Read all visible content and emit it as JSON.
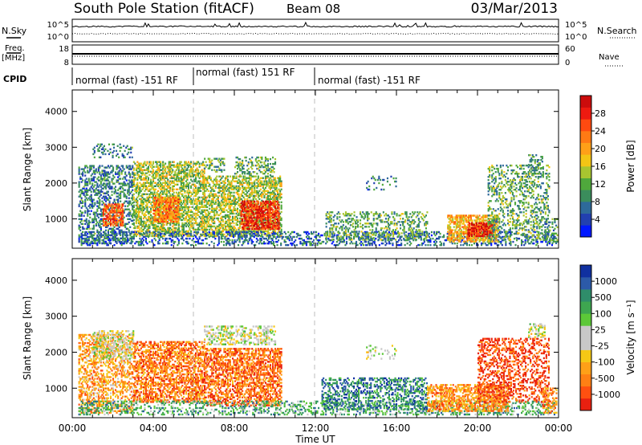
{
  "header": {
    "station": "South Pole Station (fitACF)",
    "beam": "Beam 08",
    "date": "03/Mar/2013"
  },
  "sky_panel": {
    "label": "N.Sky",
    "right_label": "N.Search",
    "left_ticks": [
      "10^5",
      "10^0"
    ],
    "right_ticks": [
      "10^5",
      "10^0"
    ]
  },
  "freq_panel": {
    "label_line1": "Freq.",
    "label_line2": "[MHz]",
    "right_label": "Nave",
    "left_ticks": [
      "18",
      "8"
    ],
    "right_ticks": [
      "60",
      "0"
    ]
  },
  "cpid": {
    "label": "CPID",
    "segments": [
      {
        "start": 0,
        "end": 6,
        "text": "normal (fast) -151 RF"
      },
      {
        "start": 6,
        "end": 12,
        "text": "normal (fast) 151 RF"
      },
      {
        "start": 12,
        "end": 24,
        "text": "normal (fast) -151 RF"
      }
    ]
  },
  "x_axis": {
    "label": "Time UT",
    "ticks": [
      "00:00",
      "04:00",
      "08:00",
      "12:00",
      "16:00",
      "20:00",
      "00:00"
    ]
  },
  "power_scale": {
    "label": "Power [dB]",
    "ticks": [
      "28",
      "24",
      "20",
      "16",
      "12",
      "8",
      "4"
    ],
    "colors": [
      "#0018ff",
      "#2240b0",
      "#2e6a9a",
      "#3b8d5c",
      "#4fa83c",
      "#a8c530",
      "#f3c515",
      "#ffa018",
      "#ff7a14",
      "#ff4a10",
      "#ee1a10",
      "#cc0c0c"
    ]
  },
  "velocity_scale": {
    "label": "Velocity [m s⁻¹]",
    "ticks": [
      "1000",
      "500",
      "100",
      "25",
      "-25",
      "-100",
      "-500",
      "-1000"
    ],
    "colors": [
      "#1030a0",
      "#2c5aa8",
      "#2f8d6a",
      "#3ea650",
      "#5cc838",
      "#c8c8c8",
      "#c8c8c8",
      "#f5c815",
      "#ffa018",
      "#ff8014",
      "#ff5010",
      "#e82010"
    ]
  },
  "chart_data": [
    {
      "type": "heatmap",
      "panel": "power",
      "ylabel": "Slant Range [km]",
      "xlabel": "",
      "x_range_hours": [
        0,
        24
      ],
      "ylim": [
        180,
        4600
      ],
      "yticks": [
        1000,
        2000,
        3000,
        4000
      ],
      "colorbar": {
        "label": "Power [dB]",
        "range": [
          2,
          32
        ],
        "ticks": [
          4,
          8,
          12,
          16,
          20,
          24,
          28
        ]
      },
      "echo_regions": [
        {
          "t0": 0.3,
          "t1": 3.0,
          "r0": 300,
          "r1": 2500,
          "density": 0.4,
          "level": 0.25
        },
        {
          "t0": 1.0,
          "t1": 3.0,
          "r0": 2700,
          "r1": 3100,
          "density": 0.2,
          "level": 0.25
        },
        {
          "t0": 1.5,
          "t1": 2.5,
          "r0": 800,
          "r1": 1400,
          "density": 0.6,
          "level": 0.75
        },
        {
          "t0": 3.0,
          "t1": 6.5,
          "r0": 500,
          "r1": 2600,
          "density": 0.55,
          "level": 0.45
        },
        {
          "t0": 4.0,
          "t1": 5.2,
          "r0": 900,
          "r1": 1600,
          "density": 0.7,
          "level": 0.7
        },
        {
          "t0": 6.5,
          "t1": 10.3,
          "r0": 500,
          "r1": 2200,
          "density": 0.55,
          "level": 0.45
        },
        {
          "t0": 8.3,
          "t1": 10.2,
          "r0": 700,
          "r1": 1500,
          "density": 0.7,
          "level": 0.85
        },
        {
          "t0": 6.5,
          "t1": 7.5,
          "r0": 2300,
          "r1": 2700,
          "density": 0.3,
          "level": 0.35
        },
        {
          "t0": 8.0,
          "t1": 10.0,
          "r0": 2200,
          "r1": 2700,
          "density": 0.3,
          "level": 0.35
        },
        {
          "t0": 0.3,
          "t1": 23.8,
          "r0": 250,
          "r1": 650,
          "density": 0.3,
          "level": 0.2
        },
        {
          "t0": 12.5,
          "t1": 17.5,
          "r0": 400,
          "r1": 1200,
          "density": 0.3,
          "level": 0.35
        },
        {
          "t0": 18.5,
          "t1": 21.0,
          "r0": 350,
          "r1": 1100,
          "density": 0.6,
          "level": 0.6
        },
        {
          "t0": 19.5,
          "t1": 20.7,
          "r0": 500,
          "r1": 900,
          "density": 0.7,
          "level": 0.9
        },
        {
          "t0": 20.5,
          "t1": 23.5,
          "r0": 400,
          "r1": 2500,
          "density": 0.3,
          "level": 0.35
        },
        {
          "t0": 22.5,
          "t1": 23.2,
          "r0": 2400,
          "r1": 2800,
          "density": 0.35,
          "level": 0.3
        },
        {
          "t0": 14.5,
          "t1": 16.0,
          "r0": 1800,
          "r1": 2200,
          "density": 0.15,
          "level": 0.25
        },
        {
          "t0": 23.3,
          "t1": 23.9,
          "r0": 300,
          "r1": 1000,
          "density": 0.4,
          "level": 0.3
        }
      ]
    },
    {
      "type": "heatmap",
      "panel": "velocity",
      "ylabel": "Slant Range [km]",
      "xlabel": "Time UT",
      "x_range_hours": [
        0,
        24
      ],
      "ylim": [
        180,
        4600
      ],
      "yticks": [
        1000,
        2000,
        3000,
        4000
      ],
      "colorbar": {
        "label": "Velocity [m s⁻¹]",
        "ticks": [
          1000,
          500,
          100,
          25,
          -25,
          -100,
          -500,
          -1000
        ]
      },
      "echo_regions": [
        {
          "t0": 0.3,
          "t1": 3.0,
          "r0": 300,
          "r1": 2500,
          "density": 0.4,
          "level": 0.72
        },
        {
          "t0": 1.0,
          "t1": 3.0,
          "r0": 1800,
          "r1": 2600,
          "density": 0.35,
          "level": 0.5
        },
        {
          "t0": 3.0,
          "t1": 6.5,
          "r0": 600,
          "r1": 2300,
          "density": 0.55,
          "level": 0.8
        },
        {
          "t0": 6.5,
          "t1": 10.3,
          "r0": 500,
          "r1": 2100,
          "density": 0.55,
          "level": 0.82
        },
        {
          "t0": 6.5,
          "t1": 10.0,
          "r0": 2200,
          "r1": 2700,
          "density": 0.35,
          "level": 0.5
        },
        {
          "t0": 0.3,
          "t1": 23.8,
          "r0": 250,
          "r1": 650,
          "density": 0.3,
          "level": 0.3
        },
        {
          "t0": 12.3,
          "t1": 17.5,
          "r0": 400,
          "r1": 1300,
          "density": 0.4,
          "level": 0.2
        },
        {
          "t0": 17.5,
          "t1": 21.5,
          "r0": 350,
          "r1": 1100,
          "density": 0.55,
          "level": 0.75
        },
        {
          "t0": 20.0,
          "t1": 23.5,
          "r0": 600,
          "r1": 2400,
          "density": 0.35,
          "level": 0.9
        },
        {
          "t0": 22.5,
          "t1": 23.3,
          "r0": 2400,
          "r1": 2800,
          "density": 0.35,
          "level": 0.5
        },
        {
          "t0": 14.5,
          "t1": 16.0,
          "r0": 1800,
          "r1": 2200,
          "density": 0.15,
          "level": 0.5
        },
        {
          "t0": 23.2,
          "t1": 23.9,
          "r0": 300,
          "r1": 1000,
          "density": 0.4,
          "level": 0.75
        }
      ]
    }
  ]
}
